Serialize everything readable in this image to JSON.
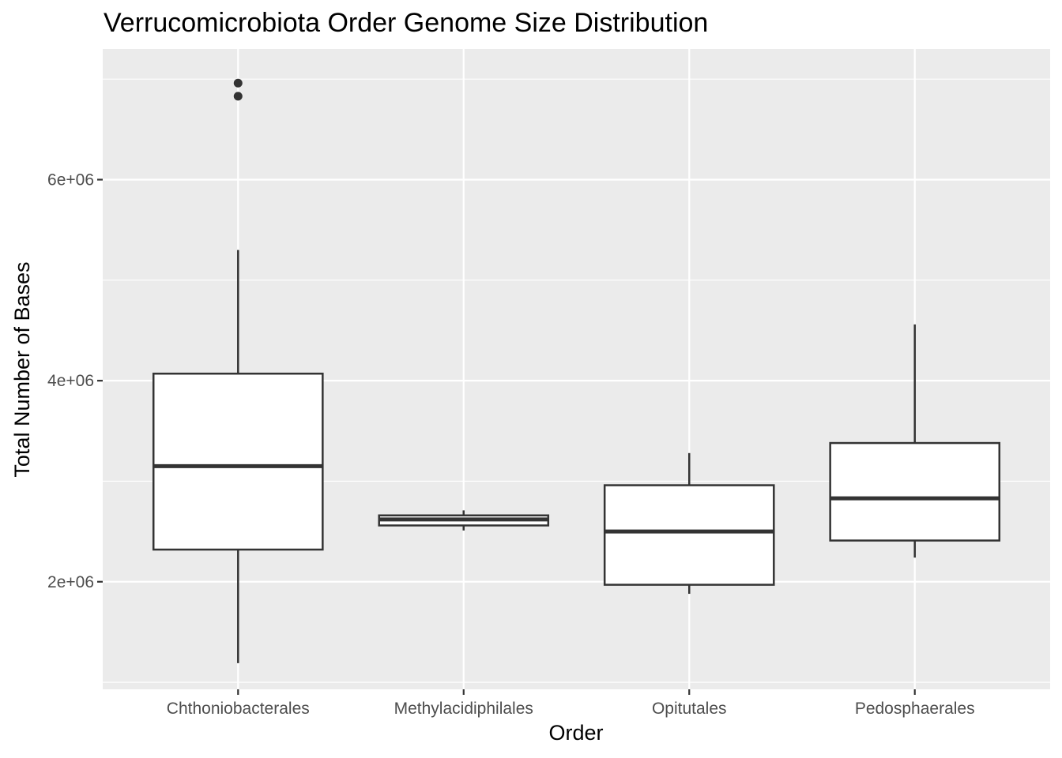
{
  "chart_data": {
    "type": "boxplot",
    "title": "Verrucomicrobiota Order Genome Size Distribution",
    "xlabel": "Order",
    "ylabel": "Total Number of Bases",
    "categories": [
      "Chthoniobacterales",
      "Methylacidiphilales",
      "Opitutales",
      "Pedosphaerales"
    ],
    "boxes": [
      {
        "category": "Chthoniobacterales",
        "lower_whisker": 1190000,
        "q1": 2320000,
        "median": 3150000,
        "q3": 4070000,
        "upper_whisker": 5300000,
        "outliers": [
          6830000,
          6960000
        ]
      },
      {
        "category": "Methylacidiphilales",
        "lower_whisker": 2510000,
        "q1": 2560000,
        "median": 2620000,
        "q3": 2660000,
        "upper_whisker": 2710000,
        "outliers": []
      },
      {
        "category": "Opitutales",
        "lower_whisker": 1880000,
        "q1": 1970000,
        "median": 2500000,
        "q3": 2960000,
        "upper_whisker": 3280000,
        "outliers": []
      },
      {
        "category": "Pedosphaerales",
        "lower_whisker": 2240000,
        "q1": 2410000,
        "median": 2830000,
        "q3": 3380000,
        "upper_whisker": 4560000,
        "outliers": []
      }
    ],
    "y_ticks": [
      2000000,
      4000000,
      6000000
    ],
    "y_tick_labels": [
      "2e+06",
      "4e+06",
      "6e+06"
    ],
    "ylim": [
      930000,
      7300000
    ],
    "grid": true,
    "colors": {
      "panel_background": "#ebebeb",
      "grid_major": "#ffffff",
      "box_fill": "#ffffff",
      "box_stroke": "#333333",
      "tick_label": "#4d4d4d"
    }
  }
}
